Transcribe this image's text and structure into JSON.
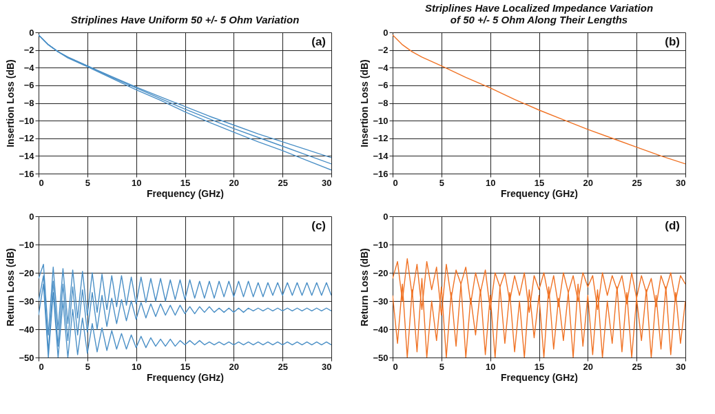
{
  "chart_data": [
    {
      "type": "line",
      "title": "Striplines Have Uniform 50 +/- 5 Ohm Variation",
      "xlabel": "Frequency (GHz)",
      "ylabel": "Insertion Loss (dB)",
      "annotations": [
        "(a)"
      ],
      "xlim": [
        0,
        30
      ],
      "ylim": [
        -16,
        0
      ],
      "xticks": [
        0,
        5,
        10,
        15,
        20,
        25,
        30
      ],
      "yticks": [
        0,
        -2,
        -4,
        -6,
        -8,
        -10,
        -12,
        -14,
        -16
      ],
      "grid": true,
      "legend": false,
      "x": [
        0,
        1,
        2,
        3,
        5,
        7.5,
        10,
        12.5,
        15,
        17.5,
        20,
        22.5,
        25,
        27.5,
        30
      ],
      "series": [
        {
          "color": "#4a8fc6",
          "values": [
            -0.3,
            -1.4,
            -2.2,
            -2.8,
            -3.8,
            -5.0,
            -6.2,
            -7.3,
            -8.4,
            -9.5,
            -10.5,
            -11.5,
            -12.4,
            -13.3,
            -14.2
          ]
        },
        {
          "color": "#4a8fc6",
          "values": [
            -0.3,
            -1.4,
            -2.2,
            -2.8,
            -3.8,
            -5.1,
            -6.3,
            -7.5,
            -8.7,
            -9.8,
            -10.9,
            -11.9,
            -12.9,
            -13.9,
            -14.9
          ]
        },
        {
          "color": "#4a8fc6",
          "values": [
            -0.3,
            -1.4,
            -2.2,
            -2.9,
            -3.9,
            -5.2,
            -6.5,
            -7.7,
            -9.0,
            -10.2,
            -11.3,
            -12.4,
            -13.4,
            -14.5,
            -15.6
          ]
        }
      ]
    },
    {
      "type": "line",
      "title": "Striplines Have Localized Impedance Variation\nof 50 +/- 5 Ohm Along Their Lengths",
      "xlabel": "Frequency (GHz)",
      "ylabel": "Insertion Loss (dB)",
      "annotations": [
        "(b)"
      ],
      "xlim": [
        0,
        30
      ],
      "ylim": [
        -16,
        0
      ],
      "xticks": [
        0,
        5,
        10,
        15,
        20,
        25,
        30
      ],
      "yticks": [
        0,
        -2,
        -4,
        -6,
        -8,
        -10,
        -12,
        -14,
        -16
      ],
      "grid": true,
      "legend": false,
      "x": [
        0,
        1,
        2,
        3,
        5,
        7.5,
        10,
        12.5,
        15,
        17.5,
        20,
        22.5,
        25,
        27.5,
        30
      ],
      "series": [
        {
          "color": "#f07224",
          "values": [
            -0.3,
            -1.4,
            -2.2,
            -2.8,
            -3.8,
            -5.1,
            -6.3,
            -7.6,
            -8.8,
            -9.9,
            -11.0,
            -12.0,
            -13.0,
            -14.0,
            -14.9
          ]
        }
      ]
    },
    {
      "type": "line",
      "xlabel": "Frequency (GHz)",
      "ylabel": "Return Loss (dB)",
      "annotations": [
        "(c)"
      ],
      "xlim": [
        0,
        30
      ],
      "ylim": [
        -50,
        0
      ],
      "xticks": [
        0,
        5,
        10,
        15,
        20,
        25,
        30
      ],
      "yticks": [
        0,
        -10,
        -20,
        -30,
        -40,
        -50
      ],
      "grid": true,
      "legend": false,
      "x": [
        0,
        0.5,
        1,
        1.5,
        2,
        2.5,
        3,
        3.5,
        4,
        4.5,
        5,
        5.5,
        6,
        6.5,
        7,
        7.5,
        8,
        8.5,
        9,
        9.5,
        10,
        10.5,
        11,
        11.5,
        12,
        12.5,
        13,
        13.5,
        14,
        14.5,
        15,
        15.5,
        16,
        16.5,
        17,
        17.5,
        18,
        18.5,
        19,
        19.5,
        20,
        20.5,
        21,
        21.5,
        22,
        22.5,
        23,
        23.5,
        24,
        24.5,
        25,
        25.5,
        26,
        26.5,
        27,
        27.5,
        28,
        28.5,
        29,
        29.5,
        30
      ],
      "series": [
        {
          "color": "#4a8fc6",
          "values": [
            -22,
            -17,
            -42,
            -18,
            -40,
            -18.5,
            -38,
            -19,
            -36,
            -19.5,
            -35,
            -20,
            -34,
            -20.5,
            -33,
            -21,
            -32,
            -21,
            -31.5,
            -21.5,
            -31,
            -21.5,
            -30.5,
            -22,
            -30,
            -22,
            -30,
            -22.5,
            -29.5,
            -22.5,
            -29.5,
            -22.5,
            -29,
            -23,
            -29,
            -23,
            -29,
            -23,
            -28.5,
            -23,
            -28.5,
            -23,
            -28.5,
            -23,
            -28.5,
            -23.5,
            -28.5,
            -23.5,
            -28,
            -23.5,
            -28,
            -23.5,
            -28,
            -23.5,
            -28,
            -23.5,
            -28,
            -23.5,
            -28,
            -23.5,
            -28
          ]
        },
        {
          "color": "#4a8fc6",
          "values": [
            -30,
            -21,
            -48,
            -23,
            -46,
            -24,
            -44,
            -25,
            -42,
            -26,
            -41,
            -27,
            -40,
            -28,
            -39,
            -29,
            -38,
            -29.5,
            -37,
            -30,
            -36.5,
            -30.5,
            -36,
            -31,
            -35.5,
            -31,
            -35,
            -31.5,
            -35,
            -31.5,
            -34.5,
            -32,
            -34.5,
            -32,
            -34,
            -32,
            -34,
            -32.5,
            -34,
            -32.5,
            -34,
            -32.5,
            -34,
            -32.5,
            -33.5,
            -32.5,
            -33.5,
            -32.5,
            -33.5,
            -32.5,
            -33.5,
            -32.5,
            -33.5,
            -32.5,
            -33.5,
            -32.5,
            -33.5,
            -32.5,
            -33.5,
            -32.5,
            -33.5
          ]
        },
        {
          "color": "#4a8fc6",
          "values": [
            -35,
            -24,
            -50,
            -27,
            -50,
            -30,
            -50,
            -33,
            -49,
            -36,
            -48.5,
            -38,
            -48,
            -39.5,
            -47.5,
            -40.5,
            -47,
            -41.5,
            -47,
            -42,
            -46.5,
            -42.5,
            -46.5,
            -43,
            -46,
            -43.5,
            -46,
            -43.5,
            -46,
            -44,
            -45.5,
            -44,
            -45.5,
            -44,
            -45.5,
            -44.5,
            -45.5,
            -44.5,
            -45.5,
            -44.5,
            -45.5,
            -44.5,
            -45.5,
            -44.5,
            -45.5,
            -44.5,
            -45.5,
            -44.5,
            -45.5,
            -44.5,
            -45.5,
            -44.5,
            -45.5,
            -44.5,
            -45.5,
            -44.5,
            -45.5,
            -44.5,
            -45.5,
            -44.5,
            -45.5
          ]
        }
      ]
    },
    {
      "type": "line",
      "xlabel": "Frequency (GHz)",
      "ylabel": "Return Loss (dB)",
      "annotations": [
        "(d)"
      ],
      "xlim": [
        0,
        30
      ],
      "ylim": [
        -50,
        0
      ],
      "xticks": [
        0,
        5,
        10,
        15,
        20,
        25,
        30
      ],
      "yticks": [
        0,
        -10,
        -20,
        -30,
        -40,
        -50
      ],
      "grid": true,
      "legend": false,
      "x": [
        0,
        0.5,
        1,
        1.5,
        2,
        2.5,
        3,
        3.5,
        4,
        4.5,
        5,
        5.5,
        6,
        6.5,
        7,
        7.5,
        8,
        8.5,
        9,
        9.5,
        10,
        10.5,
        11,
        11.5,
        12,
        12.5,
        13,
        13.5,
        14,
        14.5,
        15,
        15.5,
        16,
        16.5,
        17,
        17.5,
        18,
        18.5,
        19,
        19.5,
        20,
        20.5,
        21,
        21.5,
        22,
        22.5,
        23,
        23.5,
        24,
        24.5,
        25,
        25.5,
        26,
        26.5,
        27,
        27.5,
        28,
        28.5,
        29,
        29.5,
        30
      ],
      "series": [
        {
          "color": "#f07224",
          "values": [
            -22,
            -16,
            -30,
            -15,
            -28,
            -17,
            -33,
            -16,
            -26,
            -18,
            -35,
            -17,
            -29,
            -19,
            -24,
            -18,
            -31,
            -20,
            -27,
            -19,
            -33,
            -20,
            -25,
            -20,
            -30,
            -21,
            -28,
            -20,
            -34,
            -21,
            -26,
            -20,
            -29,
            -21,
            -32,
            -20,
            -27,
            -21,
            -30,
            -20,
            -25,
            -21,
            -33,
            -20,
            -28,
            -21,
            -26,
            -21,
            -31,
            -20,
            -29,
            -21,
            -27,
            -22,
            -32,
            -21,
            -26,
            -20,
            -30,
            -21,
            -24
          ]
        },
        {
          "color": "#f07224",
          "values": [
            -28,
            -45,
            -24,
            -50,
            -26,
            -48,
            -22,
            -50,
            -30,
            -44,
            -25,
            -50,
            -27,
            -46,
            -24,
            -50,
            -29,
            -42,
            -26,
            -49,
            -28,
            -50,
            -25,
            -45,
            -27,
            -48,
            -30,
            -50,
            -26,
            -43,
            -28,
            -50,
            -25,
            -47,
            -29,
            -44,
            -27,
            -50,
            -24,
            -46,
            -28,
            -49,
            -26,
            -50,
            -30,
            -45,
            -25,
            -48,
            -27,
            -50,
            -29,
            -44,
            -26,
            -50,
            -28,
            -47,
            -25,
            -49,
            -27,
            -45,
            -30
          ]
        }
      ]
    }
  ]
}
